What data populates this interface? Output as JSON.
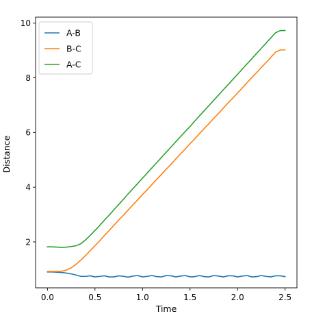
{
  "chart_data": {
    "type": "line",
    "title": "",
    "xlabel": "Time",
    "ylabel": "Distance",
    "xlim": [
      -0.125,
      2.625
    ],
    "ylim": [
      0.32,
      10.22
    ],
    "xticks": [
      0.0,
      0.5,
      1.0,
      1.5,
      2.0,
      2.5
    ],
    "xtick_labels": [
      "0.0",
      "0.5",
      "1.0",
      "1.5",
      "2.0",
      "2.5"
    ],
    "yticks": [
      2,
      4,
      6,
      8,
      10
    ],
    "ytick_labels": [
      "2",
      "4",
      "6",
      "8",
      "10"
    ],
    "grid": false,
    "legend_position": "upper-left",
    "series": [
      {
        "name": "A-B",
        "color": "#1f77b4",
        "x": [
          0.0,
          0.05,
          0.1,
          0.15,
          0.2,
          0.25,
          0.3,
          0.35,
          0.4,
          0.45,
          0.5,
          0.55,
          0.6,
          0.65,
          0.7,
          0.75,
          0.8,
          0.85,
          0.9,
          0.95,
          1.0,
          1.05,
          1.1,
          1.15,
          1.2,
          1.25,
          1.3,
          1.35,
          1.4,
          1.45,
          1.5,
          1.55,
          1.6,
          1.65,
          1.7,
          1.75,
          1.8,
          1.85,
          1.9,
          1.95,
          2.0,
          2.05,
          2.1,
          2.15,
          2.2,
          2.25,
          2.3,
          2.35,
          2.4,
          2.45,
          2.5
        ],
        "y": [
          0.9,
          0.9,
          0.89,
          0.88,
          0.86,
          0.83,
          0.79,
          0.74,
          0.74,
          0.76,
          0.72,
          0.74,
          0.76,
          0.72,
          0.72,
          0.76,
          0.74,
          0.71,
          0.75,
          0.77,
          0.72,
          0.74,
          0.77,
          0.73,
          0.72,
          0.77,
          0.76,
          0.72,
          0.75,
          0.77,
          0.72,
          0.73,
          0.77,
          0.73,
          0.72,
          0.77,
          0.75,
          0.72,
          0.76,
          0.76,
          0.72,
          0.75,
          0.77,
          0.72,
          0.73,
          0.77,
          0.74,
          0.72,
          0.76,
          0.76,
          0.73
        ]
      },
      {
        "name": "B-C",
        "color": "#ff7f0e",
        "x": [
          0.0,
          0.05,
          0.1,
          0.15,
          0.2,
          0.25,
          0.3,
          0.35,
          0.4,
          0.45,
          0.5,
          0.55,
          0.6,
          0.65,
          0.7,
          0.75,
          0.8,
          0.85,
          0.9,
          0.95,
          1.0,
          1.05,
          1.1,
          1.15,
          1.2,
          1.25,
          1.3,
          1.35,
          1.4,
          1.45,
          1.5,
          1.55,
          1.6,
          1.65,
          1.7,
          1.75,
          1.8,
          1.85,
          1.9,
          1.95,
          2.0,
          2.05,
          2.1,
          2.15,
          2.2,
          2.25,
          2.3,
          2.35,
          2.4,
          2.45,
          2.5
        ],
        "y": [
          0.92,
          0.92,
          0.92,
          0.93,
          0.97,
          1.05,
          1.18,
          1.33,
          1.5,
          1.68,
          1.86,
          2.04,
          2.24,
          2.42,
          2.61,
          2.8,
          2.98,
          3.17,
          3.36,
          3.54,
          3.73,
          3.91,
          4.1,
          4.29,
          4.47,
          4.66,
          4.84,
          5.03,
          5.22,
          5.4,
          5.59,
          5.77,
          5.96,
          6.15,
          6.33,
          6.52,
          6.7,
          6.89,
          7.08,
          7.26,
          7.45,
          7.63,
          7.82,
          8.01,
          8.19,
          8.38,
          8.56,
          8.75,
          8.94,
          9.02,
          9.02
        ]
      },
      {
        "name": "A-C",
        "color": "#2ca02c",
        "x": [
          0.0,
          0.05,
          0.1,
          0.15,
          0.2,
          0.25,
          0.3,
          0.35,
          0.4,
          0.45,
          0.5,
          0.55,
          0.6,
          0.65,
          0.7,
          0.75,
          0.8,
          0.85,
          0.9,
          0.95,
          1.0,
          1.05,
          1.1,
          1.15,
          1.2,
          1.25,
          1.3,
          1.35,
          1.4,
          1.45,
          1.5,
          1.55,
          1.6,
          1.65,
          1.7,
          1.75,
          1.8,
          1.85,
          1.9,
          1.95,
          2.0,
          2.05,
          2.1,
          2.15,
          2.2,
          2.25,
          2.3,
          2.35,
          2.4,
          2.45,
          2.5
        ],
        "y": [
          1.82,
          1.82,
          1.81,
          1.8,
          1.81,
          1.83,
          1.86,
          1.93,
          2.07,
          2.24,
          2.42,
          2.6,
          2.8,
          2.98,
          3.18,
          3.37,
          3.56,
          3.76,
          3.95,
          4.14,
          4.33,
          4.52,
          4.71,
          4.9,
          5.09,
          5.28,
          5.47,
          5.66,
          5.85,
          6.04,
          6.22,
          6.42,
          6.61,
          6.8,
          6.99,
          7.18,
          7.37,
          7.56,
          7.75,
          7.94,
          8.13,
          8.32,
          8.51,
          8.7,
          8.89,
          9.08,
          9.27,
          9.46,
          9.65,
          9.73,
          9.73
        ]
      }
    ]
  }
}
